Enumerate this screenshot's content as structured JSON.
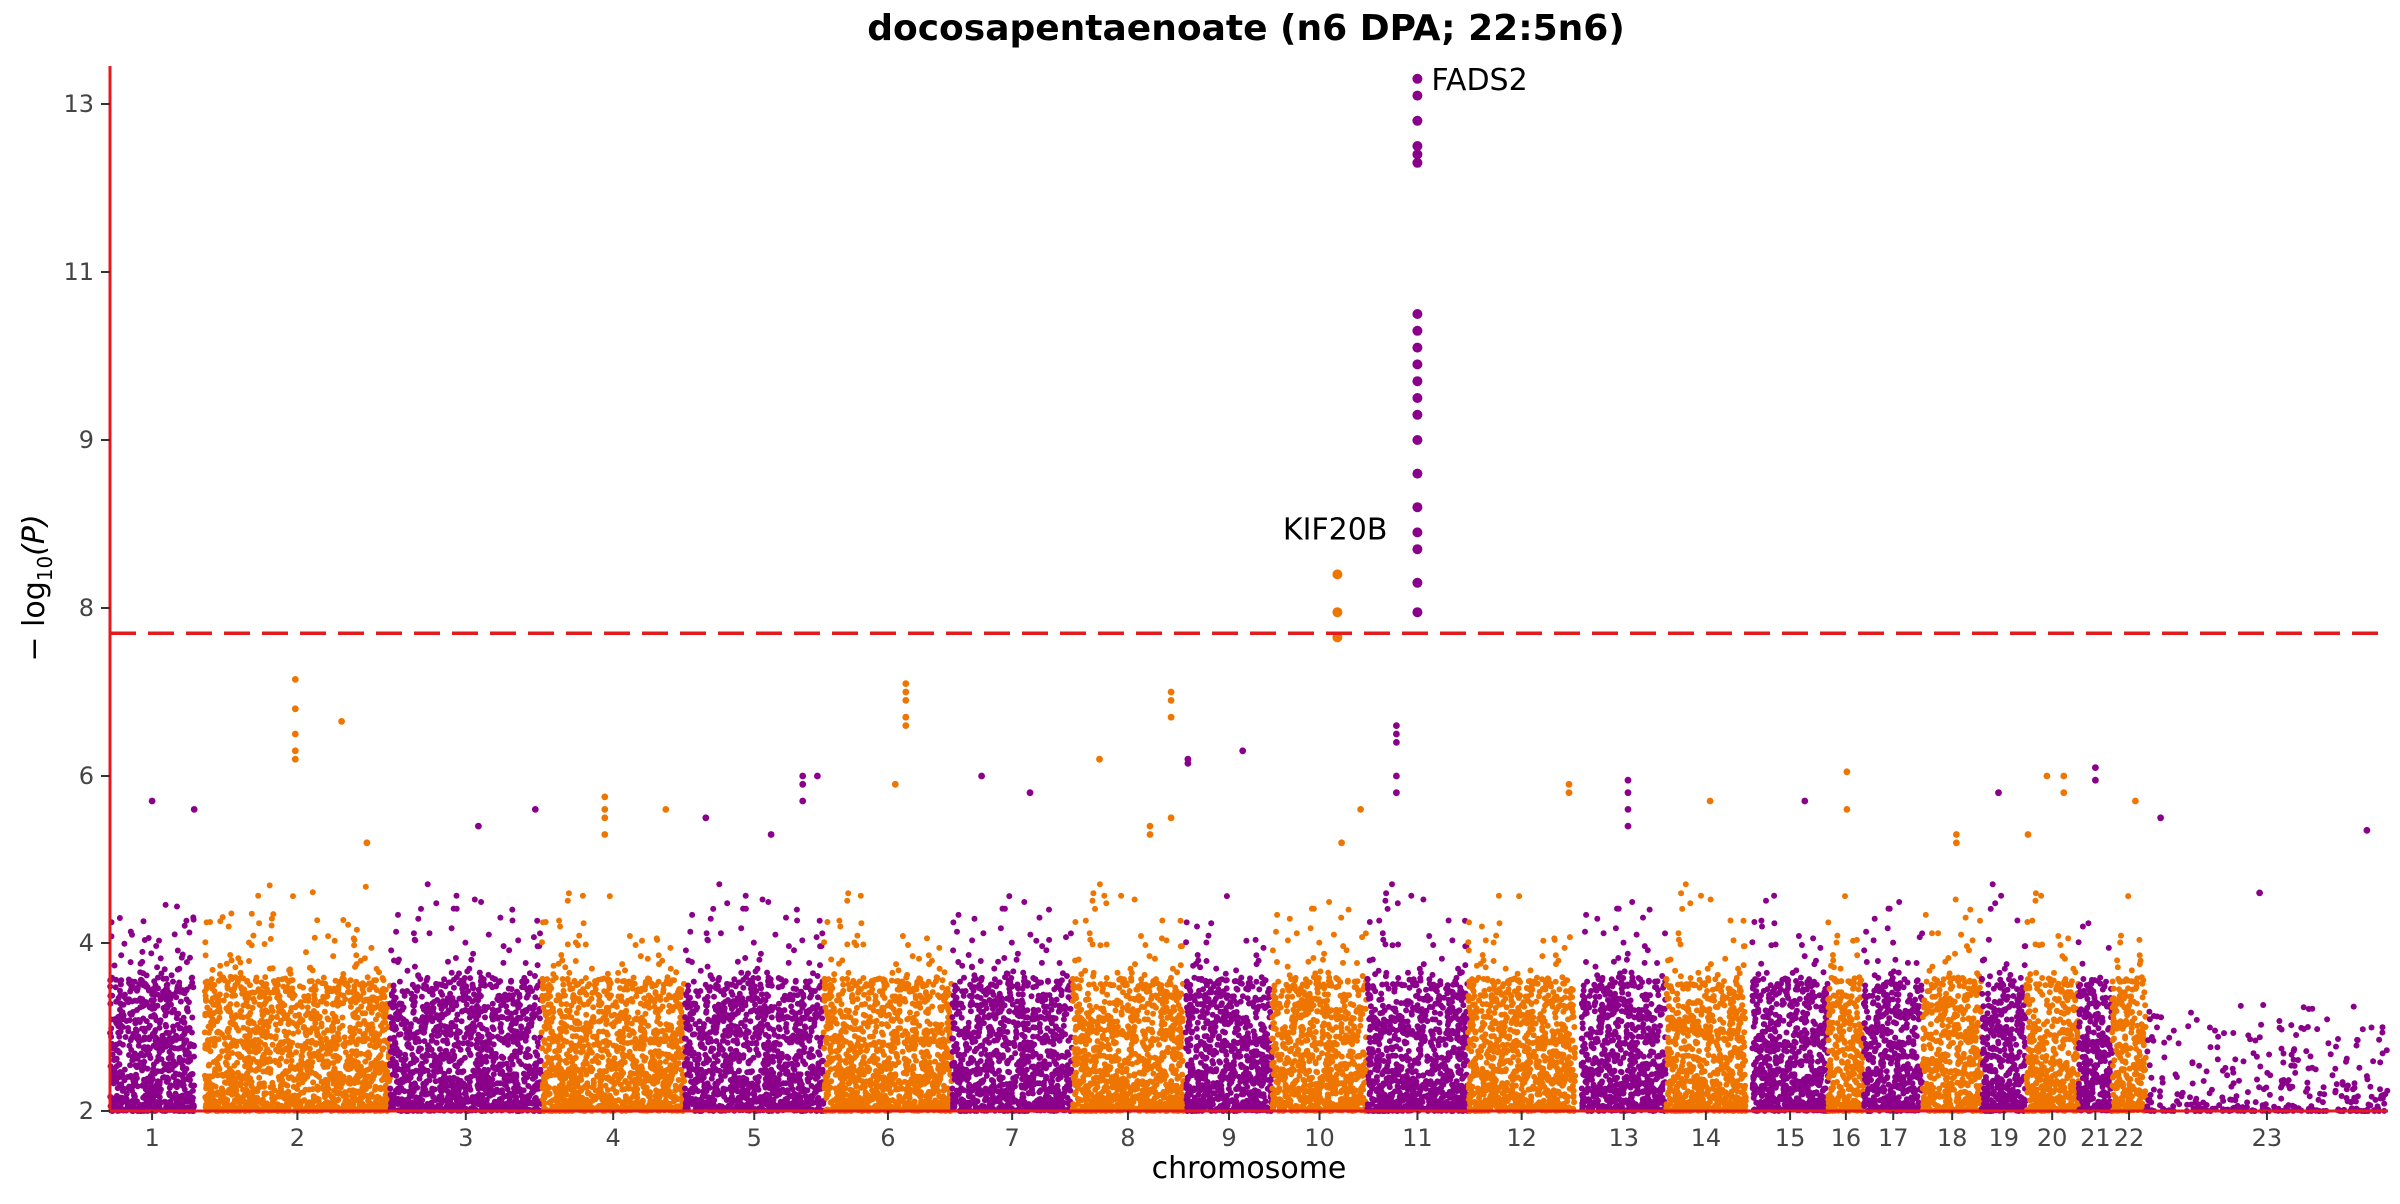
{
  "chart_data": {
    "type": "scatter",
    "title": "docosapentaenoate (n6 DPA; 22:5n6)",
    "xlabel": "chromosome",
    "ylabel": "−log₁₀(P)",
    "ylabel_main": "− log",
    "ylabel_sub": "10",
    "ylabel_paren": "(P)",
    "yticks": [
      {
        "value": 2,
        "label": "2"
      },
      {
        "value": 4,
        "label": "4"
      },
      {
        "value": 6,
        "label": "6"
      },
      {
        "value": 8,
        "label": "8"
      },
      {
        "value": 9,
        "label": "9"
      },
      {
        "value": 11,
        "label": "11"
      },
      {
        "value": 13,
        "label": "13"
      }
    ],
    "threshold": {
      "value": 7.7,
      "style": "dashed",
      "color": "#e41a1c"
    },
    "colors": {
      "odd": "#8b008b",
      "even": "#ee7600",
      "axis": "#e41a1c"
    },
    "chromosomes": [
      {
        "label": "1",
        "start": 0.0,
        "end": 4.0
      },
      {
        "label": "2",
        "start": 4.5,
        "end": 13.3
      },
      {
        "label": "3",
        "start": 13.3,
        "end": 20.5
      },
      {
        "label": "4",
        "start": 20.5,
        "end": 27.3
      },
      {
        "label": "5",
        "start": 27.3,
        "end": 33.9
      },
      {
        "label": "6",
        "start": 33.9,
        "end": 40.0
      },
      {
        "label": "7",
        "start": 40.0,
        "end": 45.7
      },
      {
        "label": "8",
        "start": 45.7,
        "end": 51.0
      },
      {
        "label": "9",
        "start": 51.1,
        "end": 55.2
      },
      {
        "label": "10",
        "start": 55.2,
        "end": 59.7
      },
      {
        "label": "11",
        "start": 59.7,
        "end": 64.5
      },
      {
        "label": "12",
        "start": 64.5,
        "end": 69.6
      },
      {
        "label": "13",
        "start": 69.9,
        "end": 73.9
      },
      {
        "label": "14",
        "start": 73.9,
        "end": 77.7
      },
      {
        "label": "15",
        "start": 78.0,
        "end": 81.6
      },
      {
        "label": "16",
        "start": 81.6,
        "end": 83.3
      },
      {
        "label": "17",
        "start": 83.3,
        "end": 86.1
      },
      {
        "label": "18",
        "start": 86.1,
        "end": 88.9
      },
      {
        "label": "19",
        "start": 88.9,
        "end": 91.0
      },
      {
        "label": "20",
        "start": 91.0,
        "end": 93.5
      },
      {
        "label": "21",
        "start": 93.5,
        "end": 95.1
      },
      {
        "label": "22",
        "start": 95.1,
        "end": 96.7
      },
      {
        "label": "23",
        "start": 96.7,
        "end": 108.2
      }
    ],
    "peaks": [
      {
        "x": 2.0,
        "y": 5.7
      },
      {
        "x": 4.0,
        "y": 5.6
      },
      {
        "x": 8.8,
        "y": 7.15
      },
      {
        "x": 8.8,
        "y": 6.8
      },
      {
        "x": 8.8,
        "y": 6.5
      },
      {
        "x": 8.8,
        "y": 6.3
      },
      {
        "x": 8.8,
        "y": 6.2
      },
      {
        "x": 11.0,
        "y": 6.65
      },
      {
        "x": 12.2,
        "y": 5.2
      },
      {
        "x": 17.5,
        "y": 5.4
      },
      {
        "x": 20.2,
        "y": 5.6
      },
      {
        "x": 23.5,
        "y": 5.75
      },
      {
        "x": 23.5,
        "y": 5.6
      },
      {
        "x": 23.5,
        "y": 5.5
      },
      {
        "x": 23.5,
        "y": 5.3
      },
      {
        "x": 26.4,
        "y": 5.6
      },
      {
        "x": 28.3,
        "y": 5.5
      },
      {
        "x": 31.4,
        "y": 5.3
      },
      {
        "x": 32.9,
        "y": 6.0
      },
      {
        "x": 32.9,
        "y": 5.9
      },
      {
        "x": 32.9,
        "y": 5.7
      },
      {
        "x": 33.6,
        "y": 6.0
      },
      {
        "x": 37.8,
        "y": 7.1
      },
      {
        "x": 37.8,
        "y": 7.0
      },
      {
        "x": 37.8,
        "y": 6.9
      },
      {
        "x": 37.8,
        "y": 6.7
      },
      {
        "x": 37.8,
        "y": 6.6
      },
      {
        "x": 37.3,
        "y": 5.9
      },
      {
        "x": 41.4,
        "y": 6.0
      },
      {
        "x": 43.7,
        "y": 5.8
      },
      {
        "x": 47.0,
        "y": 6.2
      },
      {
        "x": 49.4,
        "y": 5.4
      },
      {
        "x": 49.4,
        "y": 5.3
      },
      {
        "x": 50.4,
        "y": 7.0
      },
      {
        "x": 50.4,
        "y": 6.9
      },
      {
        "x": 50.4,
        "y": 6.7
      },
      {
        "x": 50.4,
        "y": 5.5
      },
      {
        "x": 51.2,
        "y": 6.2
      },
      {
        "x": 51.2,
        "y": 6.15
      },
      {
        "x": 53.8,
        "y": 6.3
      },
      {
        "x": 58.5,
        "y": 5.2
      },
      {
        "x": 59.4,
        "y": 5.6
      },
      {
        "x": 61.1,
        "y": 6.6
      },
      {
        "x": 61.1,
        "y": 6.5
      },
      {
        "x": 61.1,
        "y": 6.4
      },
      {
        "x": 61.1,
        "y": 6.0
      },
      {
        "x": 61.1,
        "y": 5.8
      },
      {
        "x": 69.3,
        "y": 5.9
      },
      {
        "x": 69.3,
        "y": 5.8
      },
      {
        "x": 72.1,
        "y": 5.95
      },
      {
        "x": 72.1,
        "y": 5.8
      },
      {
        "x": 72.1,
        "y": 5.6
      },
      {
        "x": 72.1,
        "y": 5.4
      },
      {
        "x": 76.0,
        "y": 5.7
      },
      {
        "x": 80.5,
        "y": 5.7
      },
      {
        "x": 82.5,
        "y": 6.05
      },
      {
        "x": 82.5,
        "y": 5.6
      },
      {
        "x": 87.7,
        "y": 5.3
      },
      {
        "x": 87.7,
        "y": 5.2
      },
      {
        "x": 89.7,
        "y": 5.8
      },
      {
        "x": 91.1,
        "y": 5.3
      },
      {
        "x": 92.0,
        "y": 6.0
      },
      {
        "x": 92.8,
        "y": 6.0
      },
      {
        "x": 92.8,
        "y": 5.8
      },
      {
        "x": 94.3,
        "y": 6.1
      },
      {
        "x": 94.3,
        "y": 5.95
      },
      {
        "x": 96.2,
        "y": 5.7
      },
      {
        "x": 97.4,
        "y": 5.5
      },
      {
        "x": 102.1,
        "y": 4.6
      },
      {
        "x": 107.2,
        "y": 5.35
      }
    ],
    "signals": [
      {
        "x": 62.1,
        "y": 13.3,
        "gene": "FADS2"
      },
      {
        "x": 62.1,
        "y": 13.1
      },
      {
        "x": 62.1,
        "y": 12.8
      },
      {
        "x": 62.1,
        "y": 12.5
      },
      {
        "x": 62.1,
        "y": 12.4
      },
      {
        "x": 62.1,
        "y": 12.3
      },
      {
        "x": 62.1,
        "y": 10.5
      },
      {
        "x": 62.1,
        "y": 10.3
      },
      {
        "x": 62.1,
        "y": 10.1
      },
      {
        "x": 62.1,
        "y": 9.9
      },
      {
        "x": 62.1,
        "y": 9.7
      },
      {
        "x": 62.1,
        "y": 9.5
      },
      {
        "x": 62.1,
        "y": 9.3
      },
      {
        "x": 62.1,
        "y": 9.0
      },
      {
        "x": 62.1,
        "y": 8.8
      },
      {
        "x": 62.1,
        "y": 8.6
      },
      {
        "x": 62.1,
        "y": 8.45
      },
      {
        "x": 62.1,
        "y": 8.35
      },
      {
        "x": 62.1,
        "y": 8.15
      },
      {
        "x": 62.1,
        "y": 7.95
      },
      {
        "x": 58.3,
        "y": 8.2,
        "gene": "KIF20B"
      },
      {
        "x": 58.3,
        "y": 7.95
      },
      {
        "x": 58.3,
        "y": 7.65
      }
    ],
    "annotations": [
      {
        "gene": "FADS2",
        "x": 62.1,
        "y": 13.3
      },
      {
        "gene": "KIF20B",
        "x": 58.3,
        "y": 8.2
      }
    ]
  }
}
